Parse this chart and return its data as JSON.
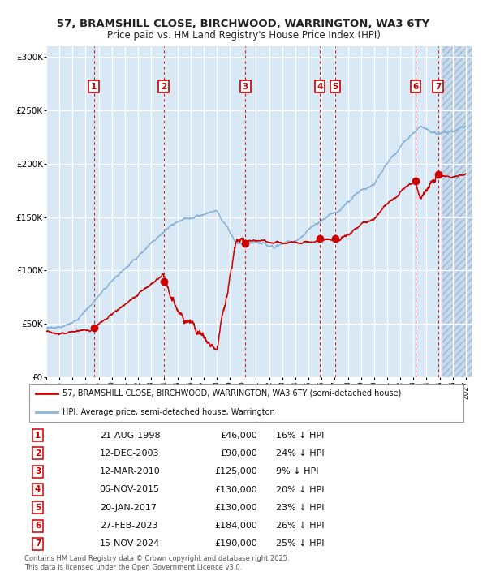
{
  "title_line1": "57, BRAMSHILL CLOSE, BIRCHWOOD, WARRINGTON, WA3 6TY",
  "title_line2": "Price paid vs. HM Land Registry's House Price Index (HPI)",
  "background_color": "#d8e8f4",
  "grid_color": "#ffffff",
  "ylabel_ticks": [
    "£0",
    "£50K",
    "£100K",
    "£150K",
    "£200K",
    "£250K",
    "£300K"
  ],
  "ytick_values": [
    0,
    50000,
    100000,
    150000,
    200000,
    250000,
    300000
  ],
  "ylim": [
    0,
    310000
  ],
  "xlim_start": 1995.0,
  "xlim_end": 2027.5,
  "sale_points": [
    {
      "num": 1,
      "year": 1998.63,
      "price": 46000
    },
    {
      "num": 2,
      "year": 2003.95,
      "price": 90000
    },
    {
      "num": 3,
      "year": 2010.19,
      "price": 125000
    },
    {
      "num": 4,
      "year": 2015.85,
      "price": 130000
    },
    {
      "num": 5,
      "year": 2017.05,
      "price": 130000
    },
    {
      "num": 6,
      "year": 2023.16,
      "price": 184000
    },
    {
      "num": 7,
      "year": 2024.87,
      "price": 190000
    }
  ],
  "hpi_line_color": "#8ab4d8",
  "price_line_color": "#cc0000",
  "sale_marker_color": "#cc0000",
  "sale_marker_size": 7,
  "vline_color": "#cc0000",
  "box_edge_color": "#cc0000",
  "future_cutoff": 2025.2,
  "legend_label_red": "57, BRAMSHILL CLOSE, BIRCHWOOD, WARRINGTON, WA3 6TY (semi-detached house)",
  "legend_label_blue": "HPI: Average price, semi-detached house, Warrington",
  "table_rows": [
    {
      "num": 1,
      "date": "21-AUG-1998",
      "price": "£46,000",
      "pct": "16% ↓ HPI"
    },
    {
      "num": 2,
      "date": "12-DEC-2003",
      "price": "£90,000",
      "pct": "24% ↓ HPI"
    },
    {
      "num": 3,
      "date": "12-MAR-2010",
      "price": "£125,000",
      "pct": "9% ↓ HPI"
    },
    {
      "num": 4,
      "date": "06-NOV-2015",
      "price": "£130,000",
      "pct": "20% ↓ HPI"
    },
    {
      "num": 5,
      "date": "20-JAN-2017",
      "price": "£130,000",
      "pct": "23% ↓ HPI"
    },
    {
      "num": 6,
      "date": "27-FEB-2023",
      "price": "£184,000",
      "pct": "26% ↓ HPI"
    },
    {
      "num": 7,
      "date": "15-NOV-2024",
      "price": "£190,000",
      "pct": "25% ↓ HPI"
    }
  ],
  "footer_text": "Contains HM Land Registry data © Crown copyright and database right 2025.\nThis data is licensed under the Open Government Licence v3.0."
}
